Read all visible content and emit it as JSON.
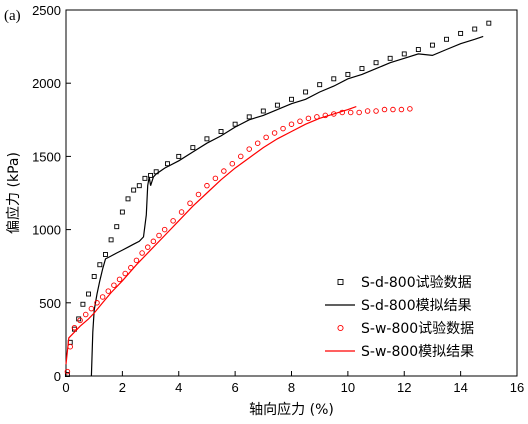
{
  "chart_data": {
    "type": "line",
    "panel_label": "(a)",
    "xlabel": "轴向应力 (%)",
    "ylabel": "偏应力 (kPa)",
    "xlim": [
      0,
      16
    ],
    "ylim": [
      0,
      2500
    ],
    "x_ticks": [
      0,
      2,
      4,
      6,
      8,
      10,
      12,
      14,
      16
    ],
    "y_ticks": [
      0,
      500,
      1000,
      1500,
      2000,
      2500
    ],
    "grid": false,
    "legend_position": "bottom-right",
    "series": [
      {
        "name": "S-d-800试验数据",
        "style": "markers",
        "marker": "square",
        "color": "#000000",
        "points": [
          [
            0.05,
            10
          ],
          [
            0.15,
            230
          ],
          [
            0.3,
            320
          ],
          [
            0.45,
            390
          ],
          [
            0.6,
            490
          ],
          [
            0.8,
            560
          ],
          [
            1.0,
            680
          ],
          [
            1.2,
            760
          ],
          [
            1.4,
            830
          ],
          [
            1.6,
            930
          ],
          [
            1.8,
            1020
          ],
          [
            2.0,
            1120
          ],
          [
            2.2,
            1210
          ],
          [
            2.4,
            1270
          ],
          [
            2.6,
            1300
          ],
          [
            2.8,
            1350
          ],
          [
            3.0,
            1370
          ],
          [
            3.2,
            1395
          ],
          [
            3.6,
            1450
          ],
          [
            4.0,
            1500
          ],
          [
            4.5,
            1560
          ],
          [
            5.0,
            1620
          ],
          [
            5.5,
            1670
          ],
          [
            6.0,
            1720
          ],
          [
            6.5,
            1770
          ],
          [
            7.0,
            1810
          ],
          [
            7.5,
            1850
          ],
          [
            8.0,
            1890
          ],
          [
            8.5,
            1940
          ],
          [
            9.0,
            1990
          ],
          [
            9.5,
            2030
          ],
          [
            10.0,
            2060
          ],
          [
            10.5,
            2100
          ],
          [
            11.0,
            2140
          ],
          [
            11.5,
            2170
          ],
          [
            12.0,
            2200
          ],
          [
            12.5,
            2230
          ],
          [
            13.0,
            2260
          ],
          [
            13.5,
            2300
          ],
          [
            14.0,
            2340
          ],
          [
            14.5,
            2370
          ],
          [
            15.0,
            2410
          ]
        ]
      },
      {
        "name": "S-d-800模拟结果",
        "style": "line",
        "color": "#000000",
        "points": [
          [
            0.9,
            0
          ],
          [
            0.95,
            300
          ],
          [
            1.0,
            450
          ],
          [
            1.1,
            560
          ],
          [
            1.2,
            650
          ],
          [
            1.3,
            730
          ],
          [
            1.4,
            800
          ],
          [
            1.6,
            820
          ],
          [
            1.8,
            840
          ],
          [
            2.0,
            860
          ],
          [
            2.2,
            880
          ],
          [
            2.4,
            900
          ],
          [
            2.6,
            920
          ],
          [
            2.75,
            950
          ],
          [
            2.85,
            1100
          ],
          [
            2.9,
            1300
          ],
          [
            2.95,
            1360
          ],
          [
            3.0,
            1300
          ],
          [
            3.1,
            1360
          ],
          [
            3.2,
            1380
          ],
          [
            3.5,
            1420
          ],
          [
            4.0,
            1470
          ],
          [
            4.5,
            1530
          ],
          [
            5.0,
            1590
          ],
          [
            5.5,
            1640
          ],
          [
            6.0,
            1700
          ],
          [
            6.5,
            1750
          ],
          [
            7.0,
            1780
          ],
          [
            7.5,
            1820
          ],
          [
            8.0,
            1860
          ],
          [
            8.5,
            1890
          ],
          [
            9.0,
            1940
          ],
          [
            9.5,
            1980
          ],
          [
            10.0,
            2030
          ],
          [
            10.5,
            2060
          ],
          [
            11.0,
            2100
          ],
          [
            11.5,
            2140
          ],
          [
            12.0,
            2170
          ],
          [
            12.5,
            2200
          ],
          [
            13.0,
            2190
          ],
          [
            13.5,
            2230
          ],
          [
            14.0,
            2270
          ],
          [
            14.5,
            2300
          ],
          [
            14.8,
            2320
          ]
        ]
      },
      {
        "name": "S-w-800试验数据",
        "style": "markers",
        "marker": "circle",
        "color": "#ff0000",
        "points": [
          [
            0.05,
            30
          ],
          [
            0.15,
            200
          ],
          [
            0.3,
            330
          ],
          [
            0.5,
            380
          ],
          [
            0.7,
            420
          ],
          [
            0.9,
            460
          ],
          [
            1.1,
            500
          ],
          [
            1.3,
            540
          ],
          [
            1.5,
            580
          ],
          [
            1.7,
            620
          ],
          [
            1.9,
            660
          ],
          [
            2.1,
            700
          ],
          [
            2.3,
            740
          ],
          [
            2.5,
            790
          ],
          [
            2.7,
            840
          ],
          [
            2.9,
            880
          ],
          [
            3.1,
            920
          ],
          [
            3.3,
            960
          ],
          [
            3.5,
            1000
          ],
          [
            3.8,
            1060
          ],
          [
            4.1,
            1120
          ],
          [
            4.4,
            1180
          ],
          [
            4.7,
            1240
          ],
          [
            5.0,
            1300
          ],
          [
            5.3,
            1350
          ],
          [
            5.6,
            1400
          ],
          [
            5.9,
            1450
          ],
          [
            6.2,
            1500
          ],
          [
            6.5,
            1550
          ],
          [
            6.8,
            1590
          ],
          [
            7.1,
            1630
          ],
          [
            7.4,
            1660
          ],
          [
            7.7,
            1690
          ],
          [
            8.0,
            1720
          ],
          [
            8.3,
            1740
          ],
          [
            8.6,
            1760
          ],
          [
            8.9,
            1770
          ],
          [
            9.2,
            1780
          ],
          [
            9.5,
            1790
          ],
          [
            9.8,
            1800
          ],
          [
            10.1,
            1800
          ],
          [
            10.4,
            1800
          ],
          [
            10.7,
            1810
          ],
          [
            11.0,
            1810
          ],
          [
            11.3,
            1820
          ],
          [
            11.6,
            1820
          ],
          [
            11.9,
            1820
          ],
          [
            12.2,
            1825
          ]
        ]
      },
      {
        "name": "S-w-800模拟结果",
        "style": "line",
        "color": "#ff0000",
        "points": [
          [
            0.0,
            80
          ],
          [
            0.1,
            260
          ],
          [
            0.3,
            300
          ],
          [
            0.5,
            340
          ],
          [
            0.8,
            390
          ],
          [
            1.0,
            430
          ],
          [
            1.3,
            500
          ],
          [
            1.6,
            570
          ],
          [
            2.0,
            650
          ],
          [
            2.5,
            760
          ],
          [
            3.0,
            860
          ],
          [
            3.5,
            960
          ],
          [
            4.0,
            1060
          ],
          [
            4.5,
            1160
          ],
          [
            5.0,
            1250
          ],
          [
            5.5,
            1340
          ],
          [
            6.0,
            1420
          ],
          [
            6.5,
            1490
          ],
          [
            7.0,
            1560
          ],
          [
            7.5,
            1620
          ],
          [
            8.0,
            1670
          ],
          [
            8.5,
            1720
          ],
          [
            9.0,
            1760
          ],
          [
            9.5,
            1790
          ],
          [
            10.0,
            1820
          ],
          [
            10.3,
            1840
          ]
        ]
      }
    ]
  }
}
